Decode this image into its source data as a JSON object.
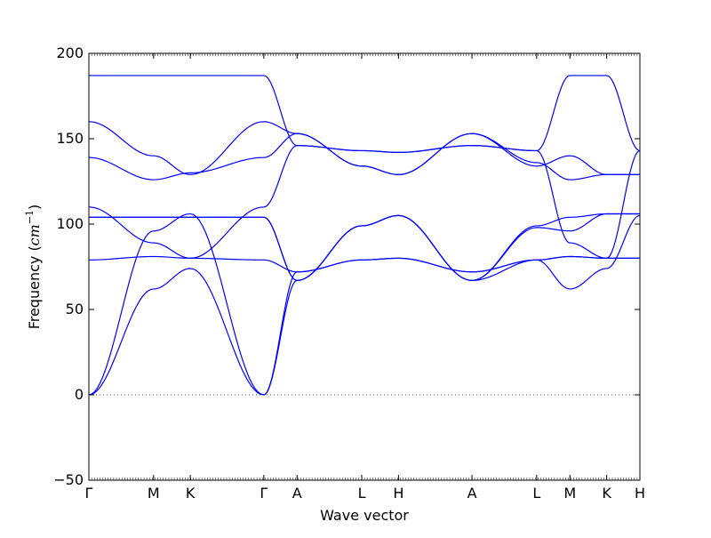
{
  "chart_data": {
    "type": "line",
    "title": "",
    "xlabel": "Wave vector",
    "ylabel": "Frequency",
    "ylabel_unit": "cm",
    "ylabel_unit_exp": "−1",
    "ylim": [
      -50,
      200
    ],
    "yticks": [
      -50,
      0,
      50,
      100,
      150,
      200
    ],
    "ytick_labels": [
      "−50",
      "0",
      "50",
      "100",
      "150",
      "200"
    ],
    "xlim": [
      0,
      3.15
    ],
    "xticks": [
      {
        "label": "Γ",
        "x": 0.0
      },
      {
        "label": "M",
        "x": 0.37
      },
      {
        "label": "K",
        "x": 0.58
      },
      {
        "label": "Γ",
        "x": 1.0
      },
      {
        "label": "A",
        "x": 1.19
      },
      {
        "label": "L",
        "x": 1.56
      },
      {
        "label": "H",
        "x": 1.77
      },
      {
        "label": "A",
        "x": 2.19
      },
      {
        "label": "L",
        "x": 2.56
      },
      {
        "label": "M",
        "x": 2.75
      },
      {
        "label": "K",
        "x": 2.96
      },
      {
        "label": "H",
        "x": 3.15
      }
    ],
    "zero_line": true,
    "line_color": "#0000ff",
    "series": [
      {
        "x": [
          0,
          0.37,
          0.58,
          1.0,
          1.19,
          1.56,
          1.77,
          2.19,
          2.56,
          2.75,
          2.96,
          3.15
        ],
        "y": [
          187,
          187,
          187,
          187,
          146,
          143,
          142,
          146,
          143,
          187,
          187,
          143
        ]
      },
      {
        "x": [
          0,
          0.37,
          0.58,
          1.0,
          1.19,
          1.56,
          1.77,
          2.19,
          2.56,
          2.75,
          2.96,
          3.15
        ],
        "y": [
          160,
          140,
          129,
          160,
          153,
          134,
          129,
          153,
          134,
          140,
          129,
          129
        ]
      },
      {
        "x": [
          0,
          0.37,
          0.58,
          1.0,
          1.19,
          1.56,
          1.77,
          2.19,
          2.56,
          2.75,
          2.96,
          3.15
        ],
        "y": [
          139,
          126,
          130,
          139,
          153,
          134,
          129,
          153,
          136,
          126,
          129,
          129
        ]
      },
      {
        "x": [
          0,
          0.37,
          0.58,
          1.0,
          1.19,
          1.56,
          1.77,
          2.19,
          2.56,
          2.75,
          2.96,
          3.15
        ],
        "y": [
          110,
          89,
          80,
          110,
          146,
          143,
          142,
          146,
          143,
          89,
          80,
          143
        ]
      },
      {
        "x": [
          0,
          0.37,
          0.58,
          1.0,
          1.19,
          1.56,
          1.77,
          2.19,
          2.56,
          2.75,
          2.96,
          3.15
        ],
        "y": [
          104,
          104,
          104,
          104,
          67,
          99,
          105,
          67,
          99,
          104,
          106,
          106
        ]
      },
      {
        "x": [
          0,
          0.37,
          0.58,
          1.0,
          1.19,
          1.56,
          1.77,
          2.19,
          2.56,
          2.75,
          2.96,
          3.15
        ],
        "y": [
          104,
          104,
          104,
          104,
          67,
          99,
          105,
          67,
          98,
          96,
          106,
          106
        ]
      },
      {
        "x": [
          0,
          0.37,
          0.58,
          1.0,
          1.19,
          1.56,
          1.77,
          2.19,
          2.56,
          2.75,
          2.96,
          3.15
        ],
        "y": [
          79,
          81,
          80,
          79,
          72,
          79,
          80,
          72,
          79,
          81,
          80,
          80
        ]
      },
      {
        "x": [
          0,
          0.37,
          0.58,
          1.0,
          1.19,
          1.56,
          1.77,
          2.19,
          2.56,
          2.75,
          2.96,
          3.15
        ],
        "y": [
          0,
          96,
          106,
          0,
          72,
          79,
          80,
          72,
          79,
          81,
          80,
          80
        ]
      },
      {
        "x": [
          0,
          0.37,
          0.58,
          1.0,
          1.19,
          1.56,
          1.77,
          2.19,
          2.56,
          2.75,
          2.96,
          3.15
        ],
        "y": [
          0,
          62,
          74,
          0,
          67,
          99,
          105,
          67,
          79,
          62,
          74,
          105
        ]
      }
    ]
  }
}
